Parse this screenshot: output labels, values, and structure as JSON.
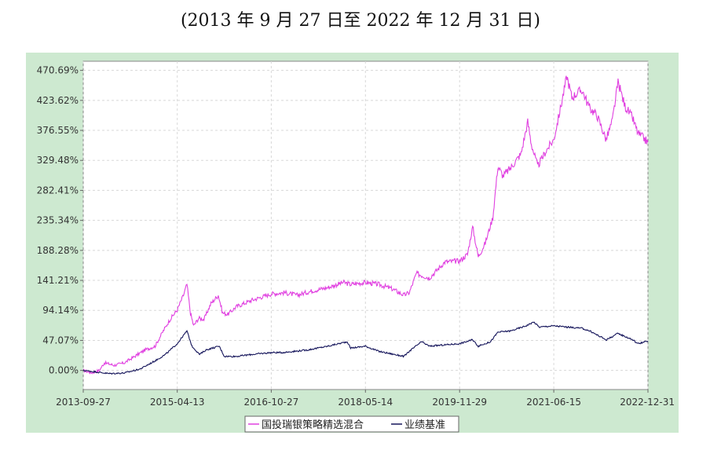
{
  "title": "(2013 年 9 月 27 日至 2022 年 12 月 31 日)",
  "chart_data": {
    "type": "line",
    "xlabel": "",
    "ylabel": "",
    "x_ticks": [
      "2013-09-27",
      "2015-04-13",
      "2016-10-27",
      "2018-05-14",
      "2019-11-29",
      "2021-06-15",
      "2022-12-31"
    ],
    "y_ticks": [
      "0.00%",
      "47.07%",
      "94.14%",
      "141.21%",
      "188.28%",
      "235.34%",
      "282.41%",
      "329.48%",
      "376.55%",
      "423.62%",
      "470.69%"
    ],
    "ylim": [
      -30,
      485
    ],
    "xlim": [
      "2013-09-27",
      "2022-12-31"
    ],
    "grid": true,
    "legend_position": "bottom",
    "series": [
      {
        "name": "国投瑞银策略精选混合",
        "color": "#e040e0",
        "points": [
          [
            "2013-09-27",
            0
          ],
          [
            "2013-11-15",
            -4
          ],
          [
            "2014-01-01",
            0
          ],
          [
            "2014-02-01",
            12
          ],
          [
            "2014-04-01",
            8
          ],
          [
            "2014-06-01",
            12
          ],
          [
            "2014-08-01",
            22
          ],
          [
            "2014-10-01",
            32
          ],
          [
            "2014-12-01",
            38
          ],
          [
            "2015-01-15",
            60
          ],
          [
            "2015-03-01",
            80
          ],
          [
            "2015-04-13",
            95
          ],
          [
            "2015-05-20",
            118
          ],
          [
            "2015-06-10",
            135
          ],
          [
            "2015-07-01",
            90
          ],
          [
            "2015-07-20",
            70
          ],
          [
            "2015-08-20",
            82
          ],
          [
            "2015-09-20",
            80
          ],
          [
            "2015-11-01",
            105
          ],
          [
            "2015-12-15",
            118
          ],
          [
            "2016-01-10",
            90
          ],
          [
            "2016-02-10",
            88
          ],
          [
            "2016-04-01",
            100
          ],
          [
            "2016-07-01",
            110
          ],
          [
            "2016-10-27",
            120
          ],
          [
            "2017-01-15",
            122
          ],
          [
            "2017-04-01",
            118
          ],
          [
            "2017-07-01",
            125
          ],
          [
            "2017-10-01",
            130
          ],
          [
            "2018-01-01",
            138
          ],
          [
            "2018-02-15",
            135
          ],
          [
            "2018-05-14",
            138
          ],
          [
            "2018-08-01",
            135
          ],
          [
            "2018-10-20",
            128
          ],
          [
            "2018-12-31",
            118
          ],
          [
            "2019-02-01",
            122
          ],
          [
            "2019-03-15",
            152
          ],
          [
            "2019-06-01",
            145
          ],
          [
            "2019-09-01",
            170
          ],
          [
            "2019-11-29",
            172
          ],
          [
            "2020-01-15",
            182
          ],
          [
            "2020-02-15",
            225
          ],
          [
            "2020-03-20",
            178
          ],
          [
            "2020-05-01",
            200
          ],
          [
            "2020-06-15",
            240
          ],
          [
            "2020-07-15",
            320
          ],
          [
            "2020-08-15",
            305
          ],
          [
            "2020-10-01",
            318
          ],
          [
            "2020-12-01",
            340
          ],
          [
            "2021-01-10",
            390
          ],
          [
            "2021-02-01",
            355
          ],
          [
            "2021-03-10",
            320
          ],
          [
            "2021-05-01",
            345
          ],
          [
            "2021-06-15",
            362
          ],
          [
            "2021-08-01",
            420
          ],
          [
            "2021-09-01",
            462
          ],
          [
            "2021-10-01",
            428
          ],
          [
            "2021-11-01",
            435
          ],
          [
            "2021-12-01",
            440
          ],
          [
            "2022-01-15",
            412
          ],
          [
            "2022-03-01",
            400
          ],
          [
            "2022-04-25",
            362
          ],
          [
            "2022-06-01",
            392
          ],
          [
            "2022-07-05",
            452
          ],
          [
            "2022-08-15",
            415
          ],
          [
            "2022-10-01",
            395
          ],
          [
            "2022-11-01",
            372
          ],
          [
            "2022-12-31",
            358
          ]
        ]
      },
      {
        "name": "业绩基准",
        "color": "#14145a",
        "points": [
          [
            "2013-09-27",
            0
          ],
          [
            "2013-12-01",
            -2
          ],
          [
            "2014-03-01",
            -5
          ],
          [
            "2014-06-01",
            -4
          ],
          [
            "2014-09-01",
            2
          ],
          [
            "2014-12-01",
            15
          ],
          [
            "2015-02-01",
            25
          ],
          [
            "2015-04-13",
            42
          ],
          [
            "2015-06-10",
            62
          ],
          [
            "2015-07-10",
            38
          ],
          [
            "2015-08-25",
            25
          ],
          [
            "2015-10-01",
            32
          ],
          [
            "2015-12-20",
            38
          ],
          [
            "2016-01-20",
            22
          ],
          [
            "2016-04-01",
            22
          ],
          [
            "2016-07-01",
            25
          ],
          [
            "2016-10-27",
            28
          ],
          [
            "2017-01-01",
            28
          ],
          [
            "2017-06-01",
            32
          ],
          [
            "2017-10-01",
            38
          ],
          [
            "2018-01-25",
            45
          ],
          [
            "2018-02-15",
            35
          ],
          [
            "2018-05-14",
            38
          ],
          [
            "2018-08-01",
            30
          ],
          [
            "2018-12-31",
            22
          ],
          [
            "2019-02-01",
            30
          ],
          [
            "2019-04-15",
            45
          ],
          [
            "2019-06-01",
            38
          ],
          [
            "2019-11-29",
            42
          ],
          [
            "2020-02-15",
            48
          ],
          [
            "2020-03-20",
            38
          ],
          [
            "2020-06-01",
            45
          ],
          [
            "2020-07-15",
            60
          ],
          [
            "2020-10-01",
            62
          ],
          [
            "2020-12-31",
            70
          ],
          [
            "2021-02-15",
            76
          ],
          [
            "2021-03-20",
            68
          ],
          [
            "2021-06-15",
            70
          ],
          [
            "2021-09-01",
            68
          ],
          [
            "2021-12-01",
            66
          ],
          [
            "2022-01-15",
            62
          ],
          [
            "2022-04-25",
            48
          ],
          [
            "2022-07-05",
            58
          ],
          [
            "2022-10-01",
            48
          ],
          [
            "2022-11-01",
            42
          ],
          [
            "2022-12-31",
            46
          ]
        ]
      }
    ]
  }
}
